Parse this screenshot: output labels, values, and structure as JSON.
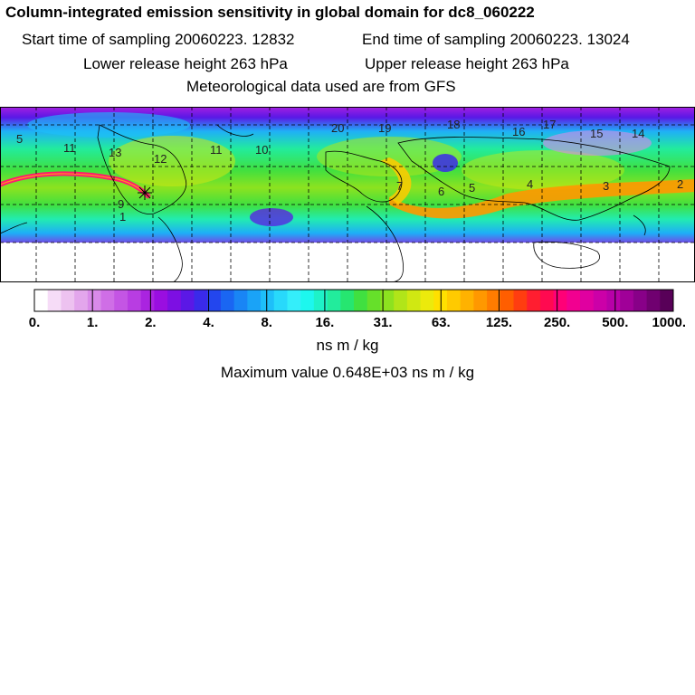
{
  "title": "Column-integrated emission sensitivity in global domain for dc8_060222",
  "start_time": "Start time of sampling 20060223. 12832",
  "end_time": "End time of sampling 20060223. 13024",
  "lower_release": "Lower release height  263 hPa",
  "upper_release": "Upper release height  263 hPa",
  "met_data": "Meteorological data used are from GFS",
  "map": {
    "time_labels": [
      "5",
      "11",
      "12",
      "13",
      "11",
      "10",
      "20",
      "19",
      "18",
      "17",
      "16",
      "15",
      "14",
      "7",
      "6",
      "5",
      "4",
      "3",
      "2",
      "1",
      "9"
    ],
    "land_color": "#ffffff",
    "plume_color": "#ff1a6e"
  },
  "colorbar": {
    "tick_labels": [
      "0.",
      "1.",
      "2.",
      "4.",
      "8.",
      "16.",
      "31.",
      "63.",
      "125.",
      "250.",
      "500.",
      "1000."
    ],
    "colors": [
      "#ffffff",
      "#f6dcf7",
      "#edc2f0",
      "#e3a6ec",
      "#d98ae9",
      "#cf6ee6",
      "#c455e4",
      "#b83de2",
      "#aa24e0",
      "#9a0ee0",
      "#7d0fe3",
      "#5b18e6",
      "#3a2aea",
      "#2346ee",
      "#1a66f2",
      "#1985f5",
      "#1aa3f7",
      "#1ebff9",
      "#28d9fb",
      "#34eefa",
      "#1df7ee",
      "#1ef2c8",
      "#22ec9c",
      "#26e670",
      "#40e040",
      "#66e02a",
      "#8de21f",
      "#b1e519",
      "#d0e812",
      "#ecea0c",
      "#ffe000",
      "#ffca00",
      "#ffb200",
      "#ff9800",
      "#ff7c00",
      "#ff5e00",
      "#ff3d10",
      "#ff1e30",
      "#ff0a50",
      "#ff0077",
      "#f20090",
      "#e000a0",
      "#cc00a8",
      "#b800a8",
      "#a00098",
      "#880088",
      "#700070",
      "#580058"
    ]
  },
  "units": "ns m / kg",
  "max_value": "Maximum value  0.648E+03 ns m / kg",
  "chart_data": {
    "type": "heatmap",
    "title": "Column-integrated emission sensitivity in global domain for dc8_060222",
    "colorbar_label": "ns m / kg",
    "colorbar_ticks": [
      0,
      1,
      2,
      4,
      8,
      16,
      31,
      63,
      125,
      250,
      500,
      1000
    ],
    "maximum_value": 648
  }
}
